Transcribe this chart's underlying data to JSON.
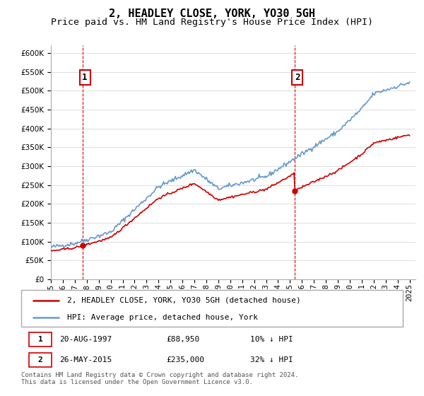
{
  "title": "2, HEADLEY CLOSE, YORK, YO30 5GH",
  "subtitle": "Price paid vs. HM Land Registry's House Price Index (HPI)",
  "ylim": [
    0,
    620000
  ],
  "yticks": [
    0,
    50000,
    100000,
    150000,
    200000,
    250000,
    300000,
    350000,
    400000,
    450000,
    500000,
    550000,
    600000
  ],
  "xlim_start": 1995.0,
  "xlim_end": 2025.5,
  "sale1_date": 1997.64,
  "sale1_price": 88950,
  "sale2_date": 2015.4,
  "sale2_price": 235000,
  "annotation1_label": "1",
  "annotation2_label": "2",
  "hpi_color": "#6699cc",
  "price_color": "#cc0000",
  "vline_color": "#cc0000",
  "grid_color": "#dddddd",
  "background_color": "#ffffff",
  "legend_label_price": "2, HEADLEY CLOSE, YORK, YO30 5GH (detached house)",
  "legend_label_hpi": "HPI: Average price, detached house, York",
  "table_row1": [
    "1",
    "20-AUG-1997",
    "£88,950",
    "10% ↓ HPI"
  ],
  "table_row2": [
    "2",
    "26-MAY-2015",
    "£235,000",
    "32% ↓ HPI"
  ],
  "footnote_line1": "Contains HM Land Registry data © Crown copyright and database right 2024.",
  "footnote_line2": "This data is licensed under the Open Government Licence v3.0.",
  "title_fontsize": 11,
  "subtitle_fontsize": 9.5,
  "tick_fontsize": 7.5,
  "legend_fontsize": 8,
  "table_fontsize": 8,
  "footnote_fontsize": 6.5
}
